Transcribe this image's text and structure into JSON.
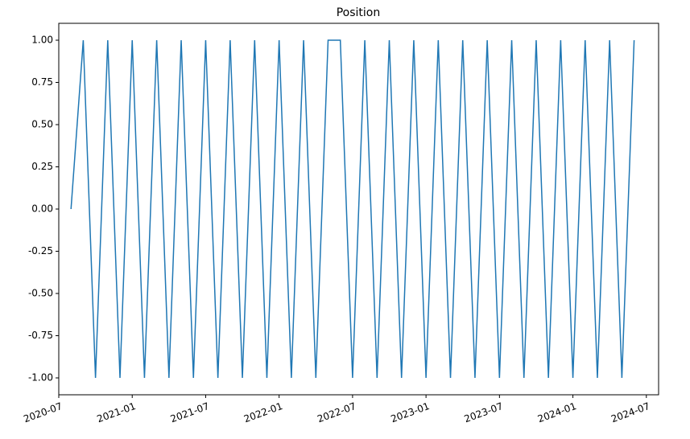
{
  "chart_data": {
    "type": "line",
    "title": "Position",
    "x": [
      "2020-08",
      "2020-09",
      "2020-10",
      "2020-11",
      "2020-12",
      "2021-01",
      "2021-02",
      "2021-03",
      "2021-04",
      "2021-05",
      "2021-06",
      "2021-07",
      "2021-08",
      "2021-09",
      "2021-10",
      "2021-11",
      "2021-12",
      "2022-01",
      "2022-02",
      "2022-03",
      "2022-04",
      "2022-05",
      "2022-06",
      "2022-07",
      "2022-08",
      "2022-09",
      "2022-10",
      "2022-11",
      "2022-12",
      "2023-01",
      "2023-02",
      "2023-03",
      "2023-04",
      "2023-05",
      "2023-06",
      "2023-07",
      "2023-08",
      "2023-09",
      "2023-10",
      "2023-11",
      "2023-12",
      "2024-01",
      "2024-02",
      "2024-03",
      "2024-04",
      "2024-05",
      "2024-06"
    ],
    "series": [
      {
        "name": "Position",
        "color": "#1f77b4",
        "values": [
          0,
          1,
          -1,
          1,
          -1,
          1,
          -1,
          1,
          -1,
          1,
          -1,
          1,
          -1,
          1,
          -1,
          1,
          -1,
          1,
          -1,
          1,
          -1,
          1,
          1,
          -1,
          1,
          -1,
          1,
          -1,
          1,
          -1,
          1,
          -1,
          1,
          -1,
          1,
          -1,
          1,
          -1,
          1,
          -1,
          1,
          -1,
          1,
          -1,
          1,
          -1,
          1
        ]
      }
    ],
    "xlim": [
      "2020-07",
      "2024-08"
    ],
    "xticks": [
      "2020-07",
      "2021-01",
      "2021-07",
      "2022-01",
      "2022-07",
      "2023-01",
      "2023-07",
      "2024-01",
      "2024-07"
    ],
    "ylim": [
      -1.1,
      1.1
    ],
    "yticks": [
      {
        "value": -1,
        "label": "-1.00"
      },
      {
        "value": -0.75,
        "label": "-0.75"
      },
      {
        "value": -0.5,
        "label": "-0.50"
      },
      {
        "value": -0.25,
        "label": "-0.25"
      },
      {
        "value": 0,
        "label": "0.00"
      },
      {
        "value": 0.25,
        "label": "0.25"
      },
      {
        "value": 0.5,
        "label": "0.50"
      },
      {
        "value": 0.75,
        "label": "0.75"
      },
      {
        "value": 1,
        "label": "1.00"
      }
    ],
    "grid": false
  }
}
